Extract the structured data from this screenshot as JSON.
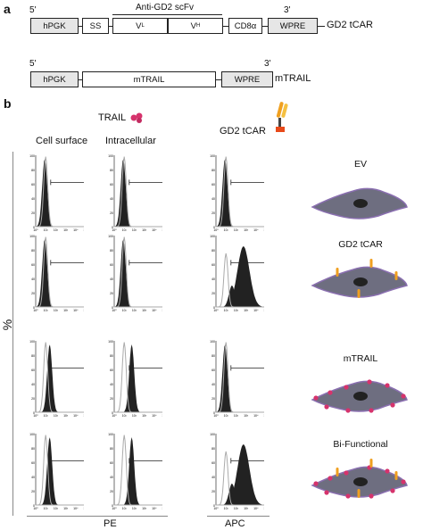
{
  "panel_a": {
    "letter": "a",
    "construct1": {
      "five_prime": "5'",
      "three_prime": "3'",
      "name": "GD2 tCAR",
      "scfv_label": "Anti-GD2 scFv",
      "boxes": [
        "hPGK",
        "SS",
        "V",
        "V",
        "CD8α",
        "WPRE"
      ],
      "vl_sub": "L",
      "vh_sub": "H"
    },
    "construct2": {
      "five_prime": "5'",
      "three_prime": "3'",
      "name": "mTRAIL",
      "boxes": [
        "hPGK",
        "mTRAIL",
        "WPRE"
      ]
    }
  },
  "panel_b": {
    "letter": "b",
    "trail_header": "TRAIL",
    "gd2_header": "GD2 tCAR",
    "col1": "Cell surface",
    "col2": "Intracellular",
    "y_axis": "%",
    "x_axis_pe": "PE",
    "x_axis_apc": "APC",
    "y_ticks": [
      "100",
      "80",
      "60",
      "40",
      "20",
      "0"
    ],
    "x_ticks": [
      "10⁰",
      "10¹",
      "10²",
      "10³",
      "10⁴",
      "10⁵"
    ],
    "rows": [
      {
        "label": "EV"
      },
      {
        "label": "GD2 tCAR"
      },
      {
        "label": "mTRAIL"
      },
      {
        "label": "Bi-Functional"
      }
    ]
  },
  "colors": {
    "filled": "#222222",
    "outline": "#aaaaaa",
    "cell": "#6e6e80",
    "trail": "#d6336c",
    "car": "#f0a020"
  }
}
